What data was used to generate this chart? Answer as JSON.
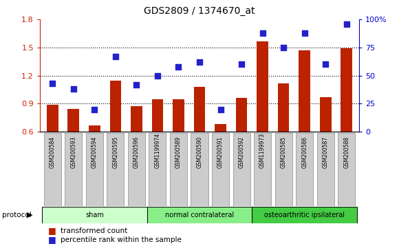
{
  "title": "GDS2809 / 1374670_at",
  "samples": [
    "GSM200584",
    "GSM200593",
    "GSM200594",
    "GSM200595",
    "GSM200596",
    "GSM1199974",
    "GSM200589",
    "GSM200590",
    "GSM200591",
    "GSM200592",
    "GSM1199973",
    "GSM200585",
    "GSM200586",
    "GSM200587",
    "GSM200588"
  ],
  "bar_values": [
    0.885,
    0.845,
    0.665,
    1.145,
    0.875,
    0.945,
    0.945,
    1.08,
    0.685,
    0.965,
    1.565,
    1.12,
    1.47,
    0.97,
    1.49
  ],
  "scatter_values": [
    43,
    38,
    20,
    67,
    42,
    50,
    58,
    62,
    20,
    60,
    88,
    75,
    88,
    60,
    96
  ],
  "bar_color": "#bb2200",
  "scatter_color": "#2222cc",
  "ylim_left": [
    0.6,
    1.8
  ],
  "ylim_right": [
    0,
    100
  ],
  "yticks_left": [
    0.6,
    0.9,
    1.2,
    1.5,
    1.8
  ],
  "yticks_right": [
    0,
    25,
    50,
    75,
    100
  ],
  "ytick_labels_right": [
    "0",
    "25",
    "50",
    "75",
    "100%"
  ],
  "groups": [
    {
      "label": "sham",
      "start": 0,
      "end": 5,
      "color": "#ccffcc"
    },
    {
      "label": "normal contralateral",
      "start": 5,
      "end": 10,
      "color": "#88ee88"
    },
    {
      "label": "osteoarthritic ipsilateral",
      "start": 10,
      "end": 15,
      "color": "#44cc44"
    }
  ],
  "protocol_label": "protocol",
  "legend_bar_label": "transformed count",
  "legend_scatter_label": "percentile rank within the sample",
  "background_color": "#ffffff",
  "left_axis_color": "#cc2200",
  "right_axis_color": "#0000cc",
  "hline_y": [
    0.9,
    1.2,
    1.5
  ],
  "sample_box_color": "#cccccc",
  "sample_box_edgecolor": "#888888"
}
